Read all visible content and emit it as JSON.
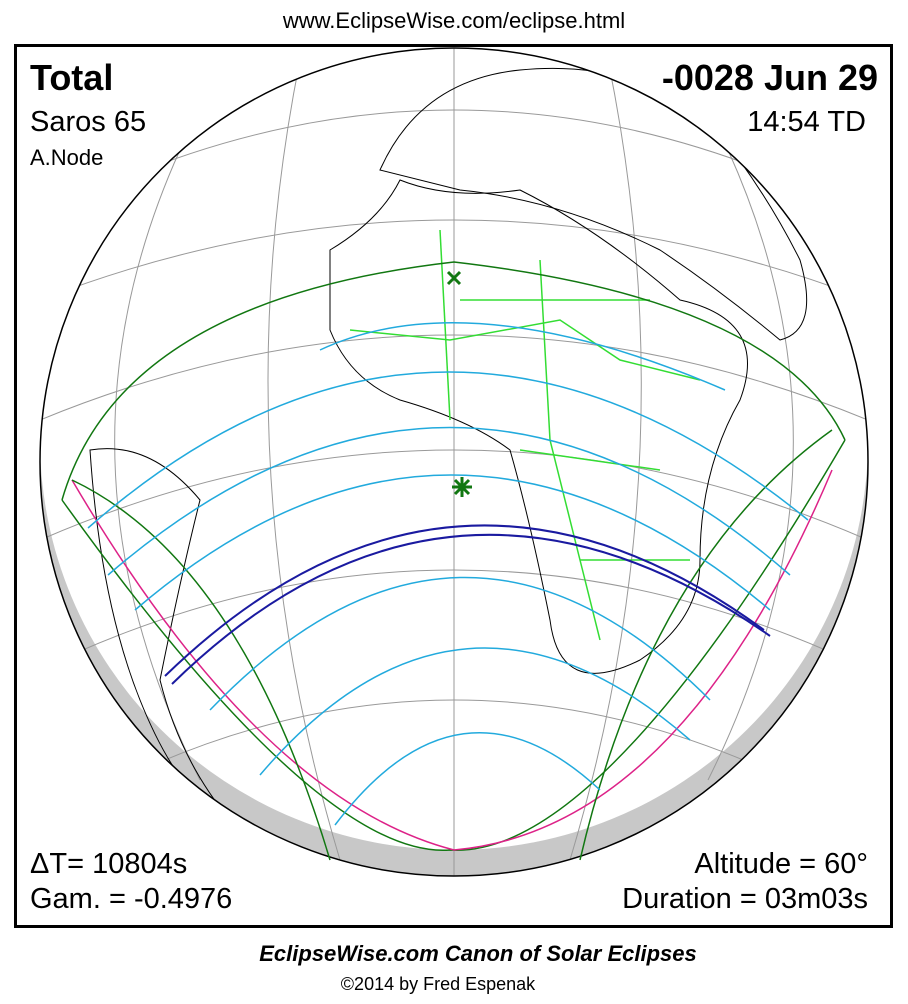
{
  "header": {
    "url": "www.EclipseWise.com/eclipse.html"
  },
  "eclipse": {
    "type": "Total",
    "date": "-0028 Jun 29",
    "saros": "Saros  65",
    "time": "14:54 TD",
    "node": "A.Node",
    "delta_t": "ΔT=  10804s",
    "gamma": "Gam. = -0.4976",
    "altitude": "Altitude = 60°",
    "duration": "Duration = 03m03s"
  },
  "footer": {
    "title": "EclipseWise.com Canon of Solar Eclipses",
    "credit": "©2014 by Fred Espenak"
  }
}
